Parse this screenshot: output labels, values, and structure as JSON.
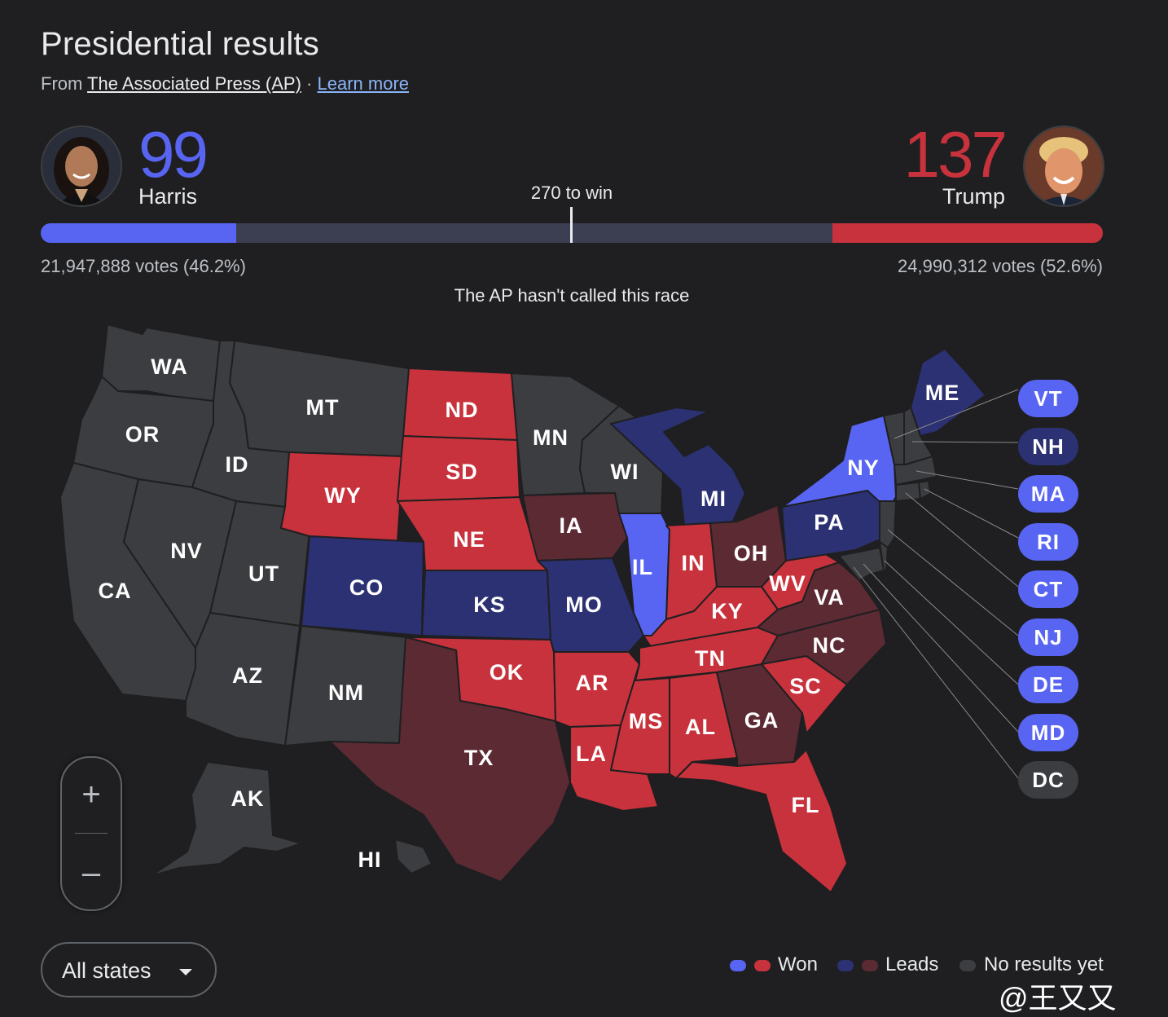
{
  "header": {
    "title": "Presidential results",
    "source_prefix": "From ",
    "source_name": "The Associated Press (AP)",
    "separator": " · ",
    "learn_more": "Learn more"
  },
  "candidates": {
    "harris": {
      "name": "Harris",
      "electoral_votes": "99",
      "votes": "21,947,888 votes (46.2%)",
      "color": "#5865f2"
    },
    "trump": {
      "name": "Trump",
      "electoral_votes": "137",
      "votes": "24,990,312 votes (52.6%)",
      "color": "#c8323c"
    }
  },
  "threshold_label": "270 to win",
  "race_status": "The AP hasn't called this race",
  "colors": {
    "dem_won": "#5865f2",
    "dem_leads": "#2b3172",
    "rep_won": "#c8323c",
    "rep_leads": "#5c2a33",
    "no_results": "#3c3d40",
    "border": "#1f1f21"
  },
  "states": {
    "WA": "no_results",
    "OR": "no_results",
    "CA": "no_results",
    "ID": "no_results",
    "NV": "no_results",
    "MT": "no_results",
    "UT": "no_results",
    "AZ": "no_results",
    "NM": "no_results",
    "MN": "no_results",
    "WI": "no_results",
    "AK": "no_results",
    "HI": "no_results",
    "WY": "rep_won",
    "ND": "rep_won",
    "SD": "rep_won",
    "NE": "rep_won",
    "OK": "rep_won",
    "AR": "rep_won",
    "LA": "rep_won",
    "MS": "rep_won",
    "AL": "rep_won",
    "TN": "rep_won",
    "KY": "rep_won",
    "IN": "rep_won",
    "WV": "rep_won",
    "SC": "rep_won",
    "FL": "rep_won",
    "TX": "rep_leads",
    "IA": "rep_leads",
    "OH": "rep_leads",
    "VA": "rep_leads",
    "NC": "rep_leads",
    "GA": "rep_leads",
    "CO": "dem_leads",
    "KS": "dem_leads",
    "MO": "dem_leads",
    "MI": "dem_leads",
    "PA": "dem_leads",
    "ME": "dem_leads",
    "IL": "dem_won",
    "NY": "dem_won"
  },
  "small_states": [
    {
      "label": "VT",
      "status": "dem_won"
    },
    {
      "label": "NH",
      "status": "dem_leads"
    },
    {
      "label": "MA",
      "status": "dem_won"
    },
    {
      "label": "RI",
      "status": "dem_won"
    },
    {
      "label": "CT",
      "status": "dem_won"
    },
    {
      "label": "NJ",
      "status": "dem_won"
    },
    {
      "label": "DE",
      "status": "dem_won"
    },
    {
      "label": "MD",
      "status": "dem_won"
    },
    {
      "label": "DC",
      "status": "no_results"
    }
  ],
  "zoom": {
    "in": "+",
    "out": "–"
  },
  "filter": {
    "selected": "All states"
  },
  "legend": {
    "won": "Won",
    "leads": "Leads",
    "no_results": "No results yet"
  },
  "watermark": "@王又又"
}
